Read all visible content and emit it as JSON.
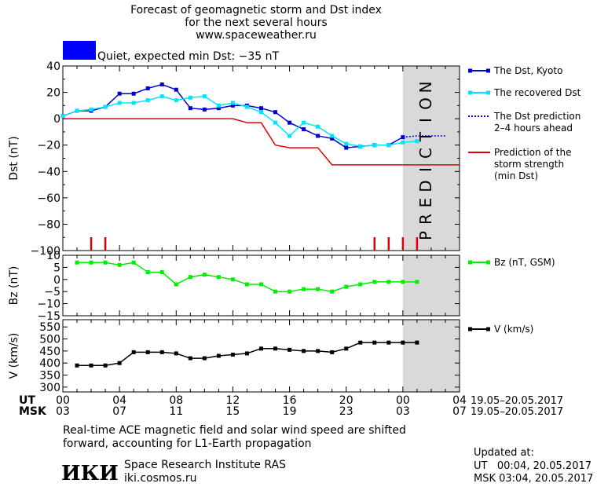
{
  "header": {
    "line1": "Forecast of geomagnetic storm and Dst index",
    "line2": "for the next several hours",
    "line3": "www.spaceweather.ru",
    "status_text": "Quiet, expected min Dst: −35 nT",
    "status_color": "#0000ff"
  },
  "colors": {
    "dst_kyoto": "#0000cc",
    "dst_recovered": "#00e5ff",
    "dst_prediction": "#0000ff",
    "storm_prediction": "#e00000",
    "bz": "#00ee00",
    "speed": "#000000",
    "prediction_zone": "#d9d9d9",
    "prediction_text": "#f0f0f0",
    "ticks_red": "#e00000"
  },
  "prediction_label": "PREDICTION",
  "x_axis": {
    "ut_label": "UT",
    "msk_label": "MSK",
    "ut_ticks": [
      "00",
      "04",
      "08",
      "12",
      "16",
      "20",
      "00",
      "04"
    ],
    "msk_ticks": [
      "03",
      "07",
      "11",
      "15",
      "19",
      "23",
      "03",
      "07"
    ],
    "date_range_ut": "19.05–20.05.2017",
    "date_range_msk": "19.05–20.05.2017"
  },
  "chart_data": [
    {
      "type": "line",
      "ylabel": "Dst (nT)",
      "ylim": [
        -100,
        40
      ],
      "yticks": [
        "40",
        "20",
        "0",
        "−20",
        "−40",
        "−60",
        "−80",
        "−100"
      ],
      "x_unit": "hours since 19.05.2017 00 UT",
      "xlim": [
        0,
        28
      ],
      "series": [
        {
          "name": "The Dst, Kyoto",
          "x": [
            0,
            1,
            2,
            3,
            4,
            5,
            6,
            7,
            8,
            9,
            10,
            11,
            12,
            13,
            14,
            15,
            16,
            17,
            18,
            19,
            20,
            21,
            22,
            23,
            24
          ],
          "values": [
            2,
            6,
            6,
            9,
            19,
            19,
            23,
            26,
            22,
            8,
            7,
            8,
            10,
            10,
            8,
            5,
            -3,
            -8,
            -13,
            -15,
            -22,
            -21,
            -20,
            -20,
            -14
          ]
        },
        {
          "name": "The recovered Dst",
          "x": [
            0,
            1,
            2,
            3,
            4,
            5,
            6,
            7,
            8,
            9,
            10,
            11,
            12,
            13,
            14,
            15,
            16,
            17,
            18,
            19,
            20,
            21,
            22,
            23,
            24,
            25
          ],
          "values": [
            2,
            6,
            7,
            9,
            12,
            12,
            14,
            17,
            14,
            16,
            17,
            10,
            12,
            9,
            5,
            -3,
            -13,
            -3,
            -6,
            -13,
            -19,
            -21,
            -20,
            -20,
            -18,
            -17
          ]
        },
        {
          "name": "The Dst prediction\n2–4 hours ahead",
          "x": [
            24,
            25,
            26,
            27
          ],
          "values": [
            -14,
            -13,
            -13,
            -13
          ]
        },
        {
          "name": "Prediction of the\nstorm strength\n(min Dst)",
          "x": [
            0,
            12,
            13,
            14,
            15,
            16,
            17,
            18,
            19,
            20,
            21,
            22,
            23,
            24,
            25,
            26,
            27,
            28
          ],
          "values": [
            0,
            0,
            -3,
            -3,
            -20,
            -22,
            -22,
            -22,
            -35,
            -35,
            -35,
            -35,
            -35,
            -35,
            -35,
            -35,
            -35,
            -35
          ]
        }
      ],
      "markers_x": [
        2,
        3,
        22,
        23,
        24,
        25
      ]
    },
    {
      "type": "line",
      "ylabel": "Bz (nT)",
      "ylim": [
        -15,
        10
      ],
      "yticks": [
        "10",
        "5",
        "0",
        "−5",
        "−10",
        "−15"
      ],
      "series": [
        {
          "name": "Bz (nT, GSM)",
          "x": [
            1,
            2,
            3,
            4,
            5,
            6,
            7,
            8,
            9,
            10,
            11,
            12,
            13,
            14,
            15,
            16,
            17,
            18,
            19,
            20,
            21,
            22,
            23,
            24,
            25
          ],
          "values": [
            7,
            7,
            7,
            6,
            7,
            3,
            3,
            -2,
            1,
            2,
            1,
            0,
            -2,
            -2,
            -5,
            -5,
            -4,
            -4,
            -5,
            -3,
            -2,
            -1,
            -1,
            -1,
            -1
          ]
        }
      ]
    },
    {
      "type": "line",
      "ylabel": "V (km/s)",
      "ylim": [
        280,
        580
      ],
      "yticks": [
        "550",
        "500",
        "450",
        "400",
        "350",
        "300"
      ],
      "series": [
        {
          "name": "V (km/s)",
          "x": [
            1,
            2,
            3,
            4,
            5,
            6,
            7,
            8,
            9,
            10,
            11,
            12,
            13,
            14,
            15,
            16,
            17,
            18,
            19,
            20,
            21,
            22,
            23,
            24,
            25
          ],
          "values": [
            390,
            390,
            390,
            400,
            445,
            445,
            445,
            440,
            420,
            420,
            430,
            435,
            440,
            460,
            460,
            455,
            450,
            450,
            445,
            460,
            485,
            485,
            485,
            485,
            485
          ]
        }
      ]
    }
  ],
  "footer": {
    "note_line1": "Real-time ACE magnetic field and solar wind speed are shifted",
    "note_line2": "forward, accounting for L1-Earth propagation",
    "logo": "ИКИ",
    "institute": "Space Research Institute RAS",
    "site": "iki.cosmos.ru",
    "updated_label": "Updated at:",
    "updated_ut": "UT   00:04, 20.05.2017",
    "updated_msk": "MSK 03:04, 20.05.2017"
  }
}
